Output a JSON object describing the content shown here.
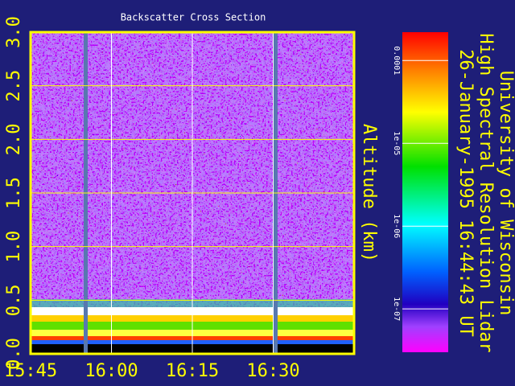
{
  "chart_data": {
    "type": "heatmap",
    "title": "Backscatter Cross Section",
    "ylabel": "Altitude (km)",
    "annotations": [
      "University of Wisconsin",
      "High Spectral Resolution Lidar",
      "26-January-1995 16:44:43 UT"
    ],
    "xlim": [
      945,
      1005
    ],
    "xticks": [
      {
        "value": 945,
        "label": "15:45"
      },
      {
        "value": 960,
        "label": "16:00"
      },
      {
        "value": 975,
        "label": "16:15"
      },
      {
        "value": 990,
        "label": "16:30"
      }
    ],
    "ylim": [
      0,
      3
    ],
    "yticks": [
      {
        "value": 0,
        "label": "0.0"
      },
      {
        "value": 0.5,
        "label": "0.5"
      },
      {
        "value": 1,
        "label": "1.0"
      },
      {
        "value": 1.5,
        "label": "1.5"
      },
      {
        "value": 2,
        "label": "2.0"
      },
      {
        "value": 2.5,
        "label": "2.5"
      },
      {
        "value": 3,
        "label": "3.0"
      }
    ],
    "colorbar": {
      "log": true,
      "lim": [
        3e-08,
        0.00022
      ],
      "ticks": [
        {
          "value": 0.0001,
          "label": "0.0001"
        },
        {
          "value": 1e-05,
          "label": "1e-05"
        },
        {
          "value": 1e-06,
          "label": "1e-06"
        },
        {
          "value": 1e-07,
          "label": "1e-07"
        }
      ]
    },
    "grid": true
  }
}
